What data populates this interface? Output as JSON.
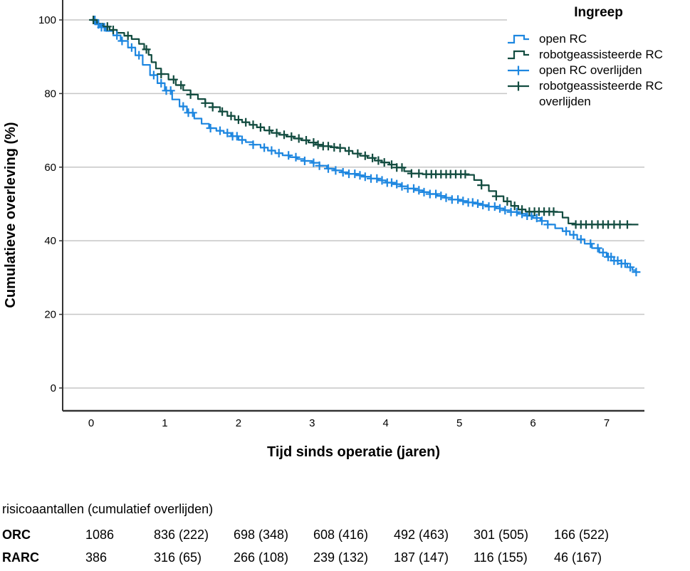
{
  "chart_data": {
    "type": "line",
    "subtype": "kaplan-meier-step",
    "title": "",
    "xlabel": "Tijd sinds operatie (jaren)",
    "ylabel": "Cumulatieve overleving (%)",
    "x_ticks": [
      0,
      1,
      2,
      3,
      4,
      5,
      6,
      7
    ],
    "y_ticks": [
      0,
      20,
      40,
      60,
      80,
      100
    ],
    "xlim": [
      -0.39,
      7.51
    ],
    "ylim": [
      -6,
      105
    ],
    "grid": "horizontal-only",
    "legend_position": "top-right",
    "legend_title": "Ingreep",
    "colors": {
      "grid": "#c6c6c6",
      "axis": "#333333",
      "open_rc_blue": "#1e87e0",
      "rarc_green": "#134c40"
    },
    "series": [
      {
        "name": "open RC",
        "role": "survival",
        "color": "#1e87e0",
        "points": [
          [
            0,
            100
          ],
          [
            0.06,
            98.8
          ],
          [
            0.12,
            98
          ],
          [
            0.2,
            97
          ],
          [
            0.3,
            95.8
          ],
          [
            0.4,
            94.3
          ],
          [
            0.5,
            92.5
          ],
          [
            0.6,
            90.4
          ],
          [
            0.7,
            87.8
          ],
          [
            0.8,
            85
          ],
          [
            0.9,
            82.8
          ],
          [
            1.0,
            80.8
          ],
          [
            1.1,
            78.4
          ],
          [
            1.2,
            76.5
          ],
          [
            1.3,
            74.8
          ],
          [
            1.4,
            73.2
          ],
          [
            1.5,
            71.8
          ],
          [
            1.6,
            70.6
          ],
          [
            1.7,
            69.9
          ],
          [
            1.8,
            69.3
          ],
          [
            1.9,
            68.4
          ],
          [
            2.0,
            67.4
          ],
          [
            2.1,
            66.8
          ],
          [
            2.2,
            66.1
          ],
          [
            2.3,
            65.3
          ],
          [
            2.4,
            64.5
          ],
          [
            2.5,
            63.8
          ],
          [
            2.6,
            63.2
          ],
          [
            2.7,
            62.7
          ],
          [
            2.8,
            62.2
          ],
          [
            2.9,
            61.7
          ],
          [
            3.0,
            61.2
          ],
          [
            3.1,
            60.4
          ],
          [
            3.2,
            59.6
          ],
          [
            3.3,
            59.1
          ],
          [
            3.4,
            58.6
          ],
          [
            3.5,
            58.2
          ],
          [
            3.6,
            57.8
          ],
          [
            3.7,
            57.4
          ],
          [
            3.8,
            56.9
          ],
          [
            3.9,
            56.4
          ],
          [
            4.0,
            55.8
          ],
          [
            4.1,
            55.4
          ],
          [
            4.2,
            54.8
          ],
          [
            4.3,
            54.2
          ],
          [
            4.4,
            53.7
          ],
          [
            4.5,
            53.2
          ],
          [
            4.6,
            52.7
          ],
          [
            4.7,
            52.2
          ],
          [
            4.8,
            51.7
          ],
          [
            4.9,
            51.2
          ],
          [
            5.0,
            50.8
          ],
          [
            5.1,
            50.4
          ],
          [
            5.2,
            50.1
          ],
          [
            5.3,
            49.7
          ],
          [
            5.4,
            49.3
          ],
          [
            5.5,
            48.8
          ],
          [
            5.6,
            48.3
          ],
          [
            5.7,
            47.8
          ],
          [
            5.8,
            47.3
          ],
          [
            5.9,
            46.8
          ],
          [
            6.0,
            46.2
          ],
          [
            6.1,
            45.4
          ],
          [
            6.2,
            44.4
          ],
          [
            6.3,
            43.4
          ],
          [
            6.4,
            42.6
          ],
          [
            6.5,
            41.6
          ],
          [
            6.6,
            40.4
          ],
          [
            6.7,
            39.2
          ],
          [
            6.8,
            38
          ],
          [
            6.9,
            36.8
          ],
          [
            7.0,
            35.6
          ],
          [
            7.1,
            34.6
          ],
          [
            7.2,
            33.8
          ],
          [
            7.28,
            32.8
          ],
          [
            7.35,
            32
          ],
          [
            7.4,
            31.5
          ]
        ]
      },
      {
        "name": "robotgeassisteerde RC",
        "role": "survival",
        "color": "#134c40",
        "points": [
          [
            0,
            100
          ],
          [
            0.08,
            99
          ],
          [
            0.16,
            98.2
          ],
          [
            0.25,
            97.3
          ],
          [
            0.35,
            96.5
          ],
          [
            0.45,
            95.7
          ],
          [
            0.55,
            94.8
          ],
          [
            0.65,
            93.5
          ],
          [
            0.72,
            92
          ],
          [
            0.78,
            90.5
          ],
          [
            0.82,
            88.5
          ],
          [
            0.88,
            86.8
          ],
          [
            0.95,
            85.3
          ],
          [
            1.05,
            83.8
          ],
          [
            1.15,
            82.3
          ],
          [
            1.25,
            80.9
          ],
          [
            1.35,
            79.7
          ],
          [
            1.45,
            78.5
          ],
          [
            1.55,
            77.4
          ],
          [
            1.65,
            76.3
          ],
          [
            1.75,
            75.1
          ],
          [
            1.85,
            73.9
          ],
          [
            1.95,
            72.9
          ],
          [
            2.05,
            72.2
          ],
          [
            2.15,
            71.5
          ],
          [
            2.25,
            70.8
          ],
          [
            2.35,
            70
          ],
          [
            2.45,
            69.3
          ],
          [
            2.55,
            68.8
          ],
          [
            2.65,
            68.3
          ],
          [
            2.75,
            67.8
          ],
          [
            2.85,
            67.3
          ],
          [
            2.95,
            66.7
          ],
          [
            3.05,
            66.1
          ],
          [
            3.15,
            65.7
          ],
          [
            3.25,
            65.4
          ],
          [
            3.35,
            65.2
          ],
          [
            3.45,
            64.4
          ],
          [
            3.55,
            63.7
          ],
          [
            3.65,
            63.1
          ],
          [
            3.75,
            62.5
          ],
          [
            3.85,
            61.8
          ],
          [
            3.95,
            61.3
          ],
          [
            4.05,
            60.7
          ],
          [
            4.15,
            59.9
          ],
          [
            4.25,
            58.9
          ],
          [
            4.35,
            58.3
          ],
          [
            4.5,
            58.1
          ],
          [
            5.1,
            57.9
          ],
          [
            5.2,
            56.5
          ],
          [
            5.3,
            55.1
          ],
          [
            5.4,
            53.5
          ],
          [
            5.5,
            52.1
          ],
          [
            5.6,
            50.7
          ],
          [
            5.7,
            49.5
          ],
          [
            5.8,
            48.5
          ],
          [
            5.9,
            47.9
          ],
          [
            6.3,
            47.8
          ],
          [
            6.4,
            46.3
          ],
          [
            6.48,
            44.7
          ],
          [
            6.56,
            44.4
          ],
          [
            7.43,
            44.4
          ]
        ]
      },
      {
        "name": "open RC overlijden",
        "role": "censor",
        "censor_of": 0,
        "color": "#1e87e0",
        "times": [
          0.05,
          0.1,
          0.14,
          0.18,
          0.35,
          0.42,
          0.55,
          0.65,
          0.85,
          0.95,
          1.02,
          1.08,
          1.25,
          1.32,
          1.38,
          1.62,
          1.75,
          1.85,
          1.92,
          1.98,
          2.05,
          2.2,
          2.35,
          2.45,
          2.55,
          2.68,
          2.78,
          2.9,
          3.02,
          3.1,
          3.22,
          3.32,
          3.42,
          3.5,
          3.58,
          3.65,
          3.72,
          3.8,
          3.88,
          3.95,
          4.02,
          4.08,
          4.15,
          4.22,
          4.3,
          4.38,
          4.45,
          4.52,
          4.6,
          4.68,
          4.75,
          4.82,
          4.9,
          4.98,
          5.05,
          5.12,
          5.18,
          5.25,
          5.32,
          5.4,
          5.48,
          5.55,
          5.62,
          5.7,
          5.78,
          5.85,
          5.92,
          5.98,
          6.05,
          6.12,
          6.2,
          6.45,
          6.55,
          6.65,
          6.78,
          6.88,
          6.95,
          7.02,
          7.06,
          7.1,
          7.15,
          7.2,
          7.25,
          7.32,
          7.4
        ]
      },
      {
        "name": "robotgeassisteerde RC overlijden",
        "role": "censor",
        "censor_of": 1,
        "color": "#134c40",
        "times": [
          0.03,
          0.22,
          0.3,
          0.5,
          0.75,
          0.95,
          1.12,
          1.22,
          1.35,
          1.55,
          1.65,
          1.78,
          1.9,
          2.0,
          2.1,
          2.2,
          2.3,
          2.42,
          2.52,
          2.62,
          2.72,
          2.82,
          2.92,
          3.02,
          3.08,
          3.15,
          3.22,
          3.3,
          3.38,
          3.5,
          3.62,
          3.72,
          3.82,
          3.9,
          3.98,
          4.08,
          4.15,
          4.22,
          4.35,
          4.45,
          4.55,
          4.62,
          4.68,
          4.75,
          4.82,
          4.88,
          4.95,
          5.02,
          5.08,
          5.3,
          5.5,
          5.65,
          5.75,
          5.85,
          5.95,
          6.02,
          6.08,
          6.15,
          6.22,
          6.28,
          6.58,
          6.65,
          6.72,
          6.8,
          6.88,
          6.95,
          7.02,
          7.1,
          7.18,
          7.28
        ]
      }
    ]
  },
  "risk_table": {
    "header": "risicoaantallen (cumulatief overlijden)",
    "rows": [
      {
        "label": "ORC",
        "values": [
          "1086",
          "836 (222)",
          "698 (348)",
          "608 (416)",
          "492 (463)",
          "301 (505)",
          "166 (522)"
        ]
      },
      {
        "label": "RARC",
        "values": [
          "386",
          "316 (65)",
          "266 (108)",
          "239 (132)",
          "187 (147)",
          "116 (155)",
          "46 (167)"
        ]
      }
    ]
  }
}
